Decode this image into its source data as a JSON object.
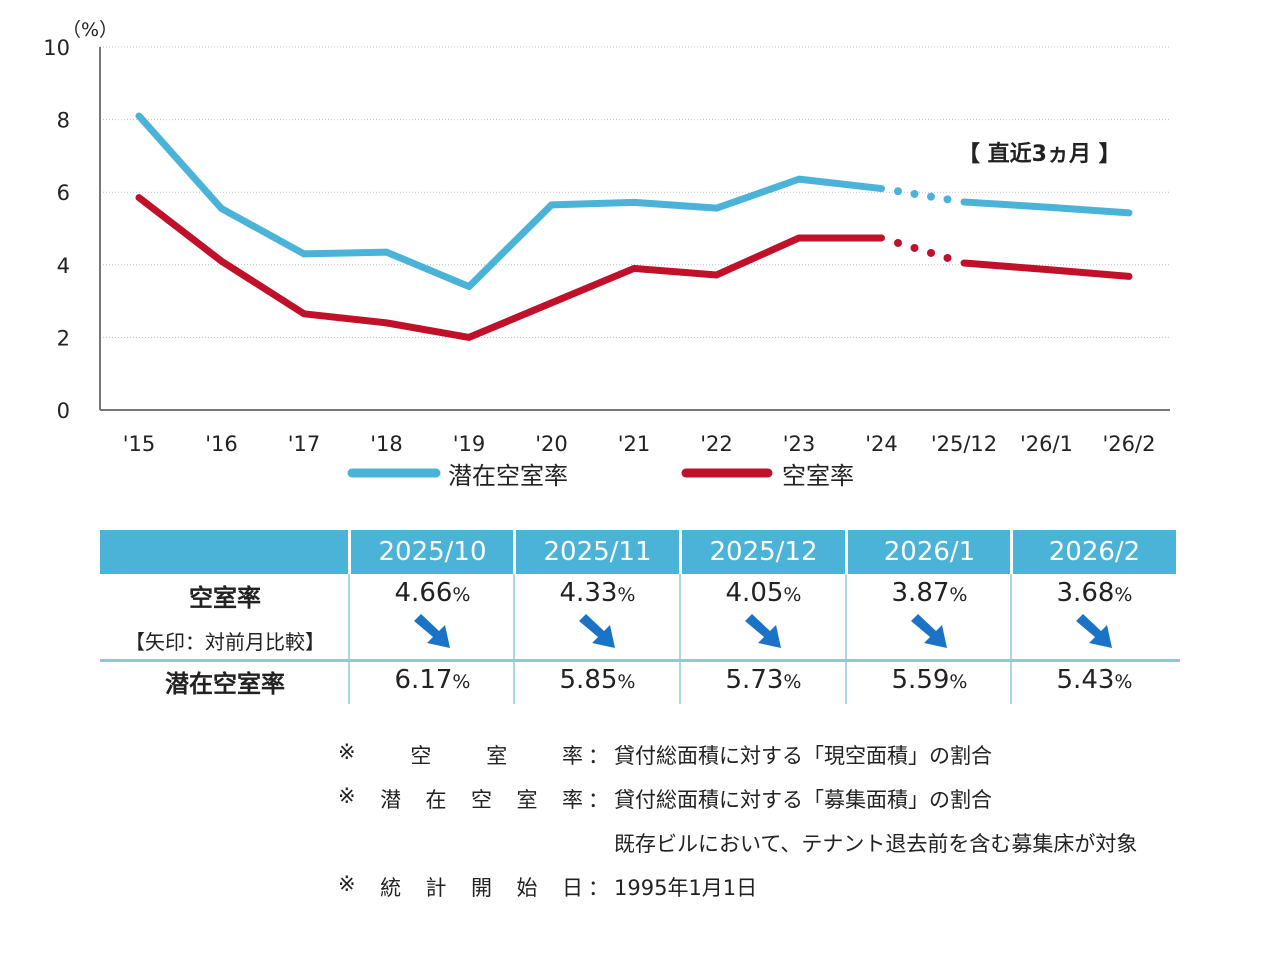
{
  "chart_data": {
    "type": "line",
    "y_unit_label": "（%）",
    "ylim": [
      0,
      10
    ],
    "y_ticks": [
      "0",
      "2",
      "4",
      "6",
      "8",
      "10"
    ],
    "categories": [
      "'15",
      "'16",
      "'17",
      "'18",
      "'19",
      "'20",
      "'21",
      "'22",
      "'23",
      "'24",
      "'25/12",
      "'26/1",
      "'26/2"
    ],
    "annotation": "【 直近3ヵ月 】",
    "series": [
      {
        "name": "潜在空室率",
        "color": "#4cb3d8",
        "values": [
          8.1,
          5.55,
          4.3,
          4.35,
          3.4,
          5.65,
          5.72,
          5.56,
          6.36,
          6.1,
          5.73,
          5.59,
          5.43
        ]
      },
      {
        "name": "空室率",
        "color": "#c0102a",
        "values": [
          5.85,
          4.1,
          2.65,
          2.4,
          2.0,
          2.95,
          3.9,
          3.72,
          4.74,
          4.74,
          4.05,
          3.87,
          3.68
        ]
      }
    ]
  },
  "table": {
    "columns": [
      "2025/10",
      "2025/11",
      "2025/12",
      "2026/1",
      "2026/2"
    ],
    "row1_label": "空室率",
    "row1_sublabel": "【矢印：対前月比較】",
    "row1_values": [
      "4.66",
      "4.33",
      "4.05",
      "3.87",
      "3.68"
    ],
    "row2_label": "潜在空室率",
    "row2_values": [
      "6.17",
      "5.85",
      "5.73",
      "5.59",
      "5.43"
    ],
    "unit": "%",
    "arrow_color": "#1a73c7"
  },
  "notes": [
    {
      "key": "※空室率",
      "sep": "：",
      "text": "貸付総面積に対する「現空面積」の割合",
      "key_chars": [
        "※",
        "空",
        "室",
        "率"
      ]
    },
    {
      "key": "※潜在空室率",
      "sep": "：",
      "text": "貸付総面積に対する「募集面積」の割合",
      "key_chars": [
        "※",
        "潜",
        "在",
        "空",
        "室",
        "率"
      ]
    },
    {
      "key": "",
      "sep": "",
      "text": "既存ビルにおいて、テナント退去前を含む募集床が対象",
      "key_chars": []
    },
    {
      "key": "※統計開始日",
      "sep": "：",
      "text": "1995年1月1日",
      "key_chars": [
        "※",
        "統",
        "計",
        "開",
        "始",
        "日"
      ]
    }
  ]
}
